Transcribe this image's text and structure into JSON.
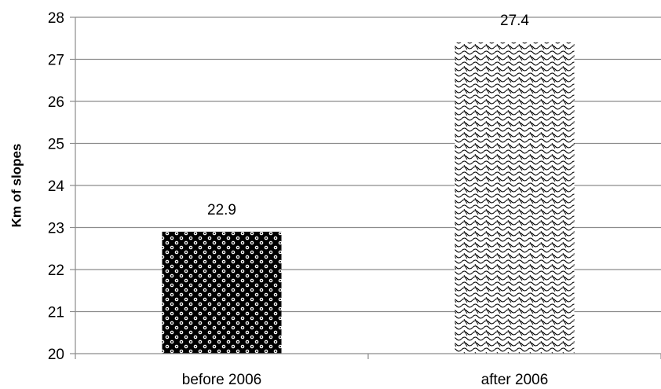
{
  "chart_data": {
    "type": "bar",
    "categories": [
      "before 2006",
      "after 2006"
    ],
    "values": [
      22.9,
      27.4
    ],
    "data_labels": [
      "22.9",
      "27.4"
    ],
    "title": "",
    "xlabel": "",
    "ylabel": "Km of slopes",
    "ylim": [
      20,
      28
    ],
    "yticks": [
      20,
      21,
      22,
      23,
      24,
      25,
      26,
      27,
      28
    ],
    "grid": true,
    "legend": "none"
  }
}
